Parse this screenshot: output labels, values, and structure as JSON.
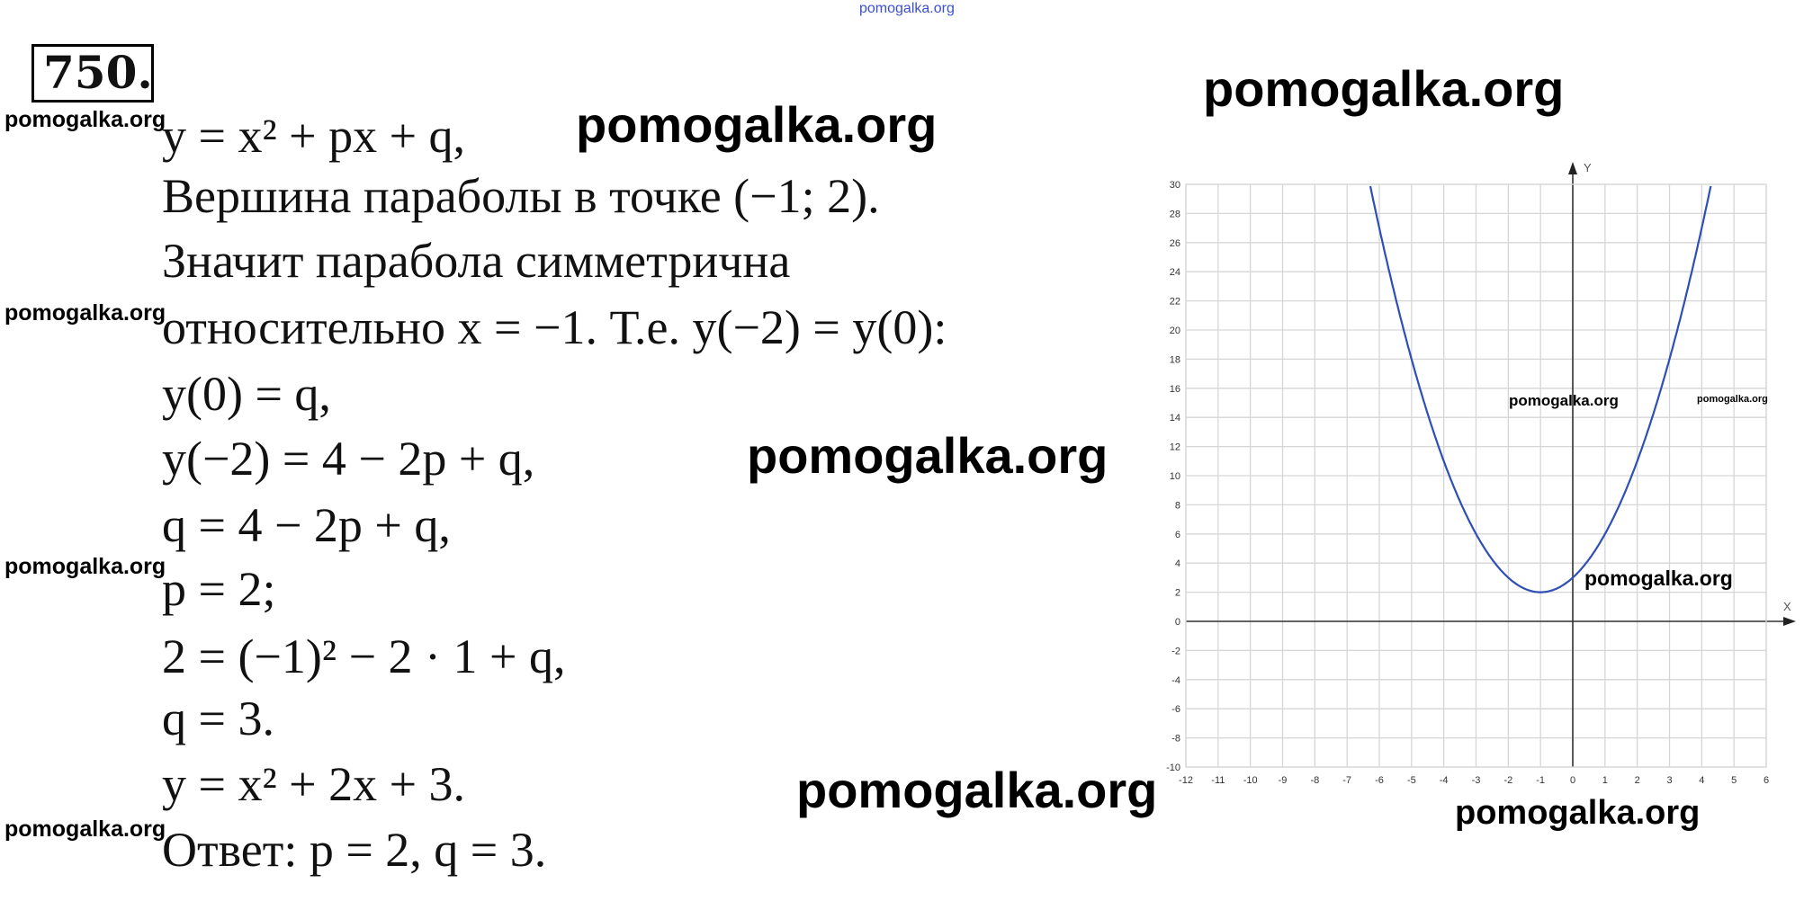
{
  "problem_number": "750.",
  "lines": [
    "y = x² + px + q,",
    "Вершина параболы в точке (−1; 2).",
    "Значит парабола симметрична",
    "относительно x = −1. Т.е. y(−2) = y(0):",
    "y(0) = q,",
    "y(−2) = 4 − 2p + q,",
    "q = 4 − 2p + q,",
    "p = 2;",
    "2 = (−1)² − 2 · 1 + q,",
    "q = 3.",
    "y = x² + 2x + 3.",
    "Ответ: p = 2, q = 3."
  ],
  "watermark": "pomogalka.org",
  "chart_data": {
    "type": "line",
    "title": "",
    "xlabel": "X",
    "ylabel": "Y",
    "xlim": [
      -12,
      6
    ],
    "ylim": [
      -10,
      30
    ],
    "x_ticks": [
      -12,
      -11,
      -10,
      -9,
      -8,
      -7,
      -6,
      -5,
      -4,
      -3,
      -2,
      -1,
      0,
      1,
      2,
      3,
      4,
      5,
      6
    ],
    "y_ticks": [
      -10,
      -8,
      -6,
      -4,
      -2,
      0,
      2,
      4,
      6,
      8,
      10,
      12,
      14,
      16,
      18,
      20,
      22,
      24,
      26,
      28,
      30
    ],
    "grid": true,
    "series": [
      {
        "formula": "y = x^2 + 2x + 3",
        "coefficients": [
          1,
          2,
          3
        ],
        "color": "#2f4fb5",
        "x": [
          -6,
          -5,
          -4,
          -3,
          -2,
          -1,
          0,
          1,
          2,
          3,
          4
        ],
        "y": [
          27,
          18,
          11,
          6,
          3,
          2,
          3,
          6,
          11,
          18,
          27
        ]
      }
    ]
  }
}
